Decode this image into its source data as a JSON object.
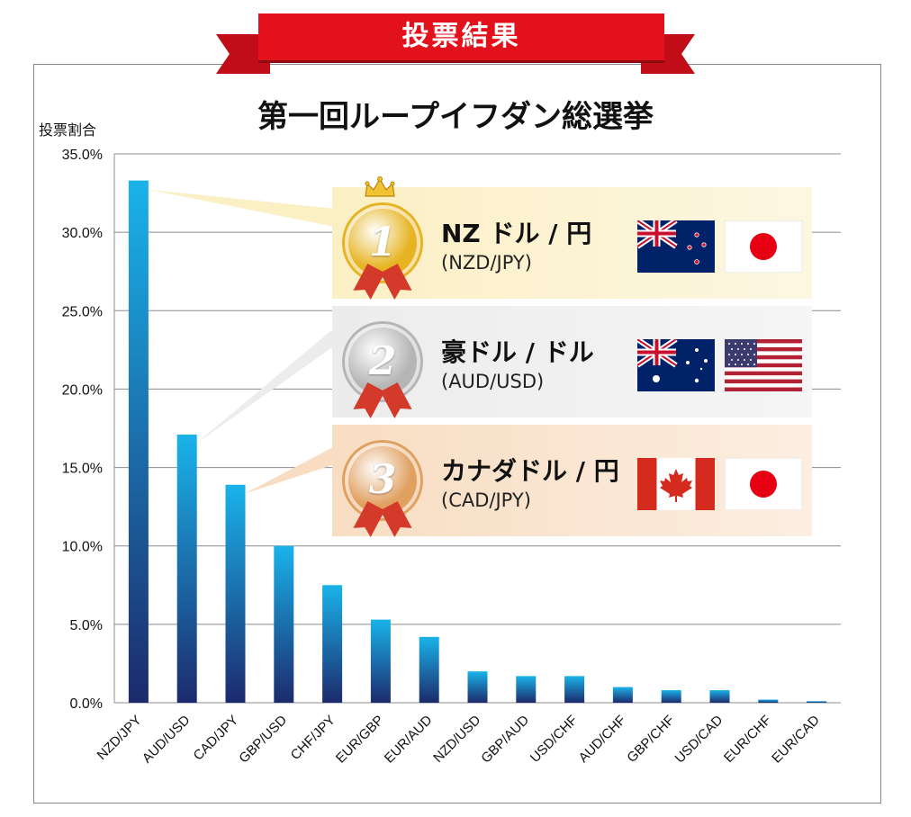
{
  "banner": {
    "label": "投票結果"
  },
  "chart_data": {
    "type": "bar",
    "title": "第一回ループイフダン総選挙",
    "ylabel": "投票割合",
    "xlabel": "",
    "ylim": [
      0,
      35
    ],
    "yticks": [
      "0.0%",
      "5.0%",
      "10.0%",
      "15.0%",
      "20.0%",
      "25.0%",
      "30.0%",
      "35.0%"
    ],
    "grid": true,
    "categories": [
      "NZD/JPY",
      "AUD/USD",
      "CAD/JPY",
      "GBP/USD",
      "CHF/JPY",
      "EUR/GBP",
      "EUR/AUD",
      "NZD/USD",
      "GBP/AUD",
      "USD/CHF",
      "AUD/CHF",
      "GBP/CHF",
      "USD/CAD",
      "EUR/CHF",
      "EUR/CAD"
    ],
    "values": [
      33.3,
      17.1,
      13.9,
      10.0,
      7.5,
      5.3,
      4.2,
      2.0,
      1.7,
      1.7,
      1.0,
      0.8,
      0.8,
      0.2,
      0.1
    ],
    "colors": {
      "bar_top": "#1ab3ea",
      "bar_bottom": "#1c2a6c",
      "grid": "#8c8c8c"
    }
  },
  "ranking": [
    {
      "rank": "1",
      "name": "NZ ドル / 円",
      "code": "(NZD/JPY)",
      "flags": [
        "new-zealand-flag",
        "japan-flag"
      ],
      "medal_color": "#e6b422",
      "panel_color": "#fbefc4"
    },
    {
      "rank": "2",
      "name": "豪ドル / ドル",
      "code": "(AUD/USD)",
      "flags": [
        "australia-flag",
        "usa-flag"
      ],
      "medal_color": "#b5b5b5",
      "panel_color": "#ececec"
    },
    {
      "rank": "3",
      "name": "カナダドル / 円",
      "code": "(CAD/JPY)",
      "flags": [
        "canada-flag",
        "japan-flag"
      ],
      "medal_color": "#e0a060",
      "panel_color": "#f8ddc2"
    }
  ]
}
